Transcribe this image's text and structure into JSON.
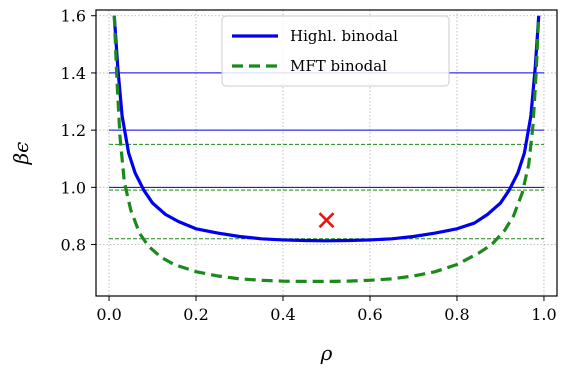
{
  "chart_data": {
    "type": "line",
    "xlabel": "ρ",
    "ylabel": "βϵ",
    "xlim": [
      -0.03,
      1.03
    ],
    "ylim": [
      0.62,
      1.62
    ],
    "xticks": [
      0.0,
      0.2,
      0.4,
      0.6,
      0.8,
      1.0
    ],
    "xtick_labels": [
      "0.0",
      "0.2",
      "0.4",
      "0.6",
      "0.8",
      "1.0"
    ],
    "yticks": [
      0.8,
      1.0,
      1.2,
      1.4,
      1.6
    ],
    "ytick_labels": [
      "0.8",
      "1.0",
      "1.2",
      "1.4",
      "1.6"
    ],
    "grid": true,
    "legend_position": "top-center",
    "series": [
      {
        "name": "Highl. binodal",
        "color": "#0000ee",
        "style": "solid",
        "x": [
          0.012,
          0.02,
          0.03,
          0.045,
          0.06,
          0.08,
          0.1,
          0.13,
          0.16,
          0.2,
          0.25,
          0.3,
          0.35,
          0.4,
          0.45,
          0.5,
          0.55,
          0.6,
          0.65,
          0.7,
          0.75,
          0.8,
          0.84,
          0.87,
          0.9,
          0.92,
          0.94,
          0.955,
          0.97,
          0.98,
          0.988
        ],
        "y": [
          1.6,
          1.42,
          1.25,
          1.12,
          1.05,
          0.99,
          0.945,
          0.905,
          0.88,
          0.855,
          0.84,
          0.828,
          0.82,
          0.816,
          0.814,
          0.813,
          0.814,
          0.816,
          0.82,
          0.828,
          0.84,
          0.855,
          0.875,
          0.905,
          0.945,
          0.99,
          1.05,
          1.12,
          1.25,
          1.42,
          1.6
        ]
      },
      {
        "name": "MFT binodal",
        "color": "#1a8a1a",
        "style": "dashed",
        "x": [
          0.012,
          0.018,
          0.025,
          0.035,
          0.05,
          0.07,
          0.09,
          0.12,
          0.15,
          0.2,
          0.25,
          0.3,
          0.35,
          0.4,
          0.45,
          0.5,
          0.55,
          0.6,
          0.65,
          0.7,
          0.75,
          0.8,
          0.85,
          0.88,
          0.91,
          0.93,
          0.95,
          0.965,
          0.975,
          0.982,
          0.988
        ],
        "y": [
          1.6,
          1.38,
          1.18,
          1.02,
          0.92,
          0.84,
          0.795,
          0.755,
          0.73,
          0.705,
          0.69,
          0.68,
          0.675,
          0.672,
          0.671,
          0.671,
          0.672,
          0.675,
          0.68,
          0.69,
          0.705,
          0.73,
          0.77,
          0.8,
          0.85,
          0.9,
          0.98,
          1.08,
          1.22,
          1.4,
          1.6
        ]
      }
    ],
    "hlines": [
      {
        "y": 1.4,
        "color": "#0000ee"
      },
      {
        "y": 1.2,
        "color": "#0000ee"
      },
      {
        "y": 1.15,
        "color": "#1a8a1a"
      },
      {
        "y": 1.0,
        "color": "#0000ee"
      },
      {
        "y": 0.99,
        "color": "#1a8a1a"
      },
      {
        "y": 0.82,
        "color": "#1a8a1a"
      }
    ],
    "marker": {
      "x": 0.5,
      "y": 0.885,
      "symbol": "×",
      "color": "#ee1111"
    }
  }
}
